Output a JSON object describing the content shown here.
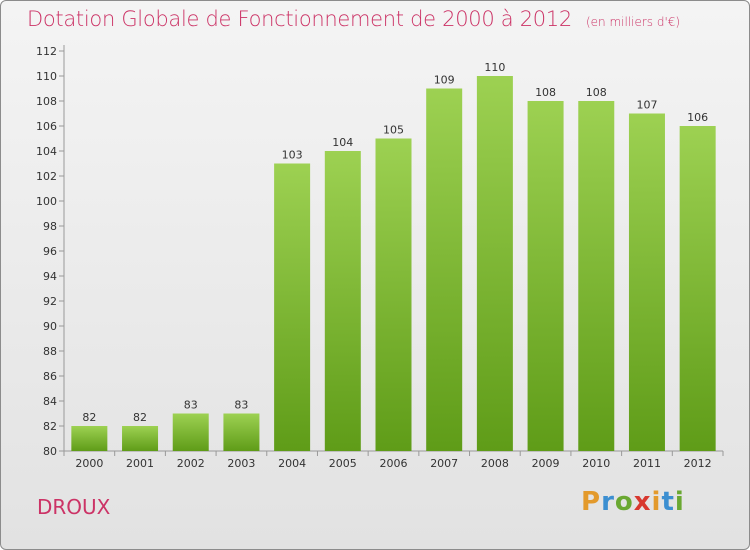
{
  "title": "Dotation Globale de Fonctionnement de 2000 à 2012",
  "subtitle": "(en milliers d'€)",
  "place": "DROUX",
  "logo": {
    "text": "Proxiti",
    "letters": [
      {
        "ch": "P",
        "color": "#e39a2c"
      },
      {
        "ch": "r",
        "color": "#3c8fd1"
      },
      {
        "ch": "o",
        "color": "#6aa832"
      },
      {
        "ch": "x",
        "color": "#d8382f"
      },
      {
        "ch": "i",
        "color": "#e39a2c"
      },
      {
        "ch": "t",
        "color": "#3c8fd1"
      },
      {
        "ch": "i",
        "color": "#6aa832"
      }
    ]
  },
  "colors": {
    "accent": "#cc3366",
    "bar_top": "#9dd152",
    "bar_bottom": "#5f9c18"
  },
  "chart_data": {
    "type": "bar",
    "categories": [
      "2000",
      "2001",
      "2002",
      "2003",
      "2004",
      "2005",
      "2006",
      "2007",
      "2008",
      "2009",
      "2010",
      "2011",
      "2012"
    ],
    "values": [
      82,
      82,
      83,
      83,
      103,
      104,
      105,
      109,
      110,
      108,
      108,
      107,
      106
    ],
    "ylim": [
      80,
      112
    ],
    "yticks": [
      80,
      82,
      84,
      86,
      88,
      90,
      92,
      94,
      96,
      98,
      100,
      102,
      104,
      106,
      108,
      110,
      112
    ],
    "grid": false,
    "legend": "none"
  }
}
